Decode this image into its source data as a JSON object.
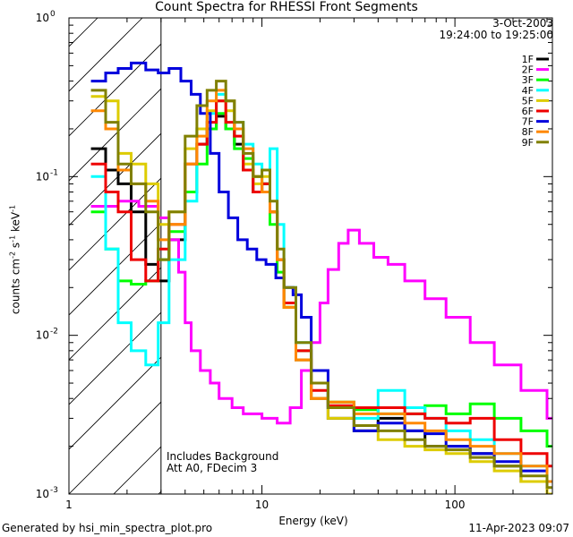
{
  "chart_data": {
    "type": "line",
    "title": "Count Spectra for RHESSI Front Segments",
    "xlabel": "Energy (keV)",
    "ylabel": "counts cm-2 s-1 keV-1",
    "xscale": "log",
    "yscale": "log",
    "xlim": [
      1,
      320
    ],
    "ylim": [
      0.001,
      1.0
    ],
    "x_ticks": [
      {
        "value": 1,
        "label": "1"
      },
      {
        "value": 10,
        "label": "10"
      },
      {
        "value": 100,
        "label": "100"
      }
    ],
    "y_ticks": [
      {
        "value": 1.0,
        "label": "10",
        "exp": "0"
      },
      {
        "value": 0.1,
        "label": "10",
        "exp": "-1"
      },
      {
        "value": 0.01,
        "label": "10",
        "exp": "-2"
      },
      {
        "value": 0.001,
        "label": "10",
        "exp": "-3"
      }
    ],
    "date": "3-Oct-2003",
    "time_range": "19:24:00 to 19:25:00",
    "annotations": [
      "Includes Background",
      "Att A0, FDecim 3"
    ],
    "hatched_region_max_keV": 3,
    "legend_position": "top-right",
    "series": [
      {
        "name": "1F",
        "color": "#000000",
        "points": [
          [
            1.3,
            0.15
          ],
          [
            1.55,
            0.11
          ],
          [
            1.8,
            0.09
          ],
          [
            2.1,
            0.06
          ],
          [
            2.5,
            0.028
          ],
          [
            2.9,
            0.022
          ],
          [
            3.3,
            0.04
          ],
          [
            4.0,
            0.08
          ],
          [
            4.6,
            0.16
          ],
          [
            5.2,
            0.2
          ],
          [
            5.8,
            0.24
          ],
          [
            6.5,
            0.2
          ],
          [
            7.2,
            0.16
          ],
          [
            8.0,
            0.11
          ],
          [
            9.0,
            0.08
          ],
          [
            10,
            0.09
          ],
          [
            11,
            0.06
          ],
          [
            12,
            0.03
          ],
          [
            13,
            0.015
          ],
          [
            15,
            0.007
          ],
          [
            18,
            0.004
          ],
          [
            22,
            0.003
          ],
          [
            30,
            0.0025
          ],
          [
            40,
            0.003
          ],
          [
            55,
            0.0025
          ],
          [
            70,
            0.002
          ],
          [
            90,
            0.002
          ],
          [
            120,
            0.0018
          ],
          [
            160,
            0.0015
          ],
          [
            220,
            0.0012
          ],
          [
            300,
            0.001
          ]
        ]
      },
      {
        "name": "2F",
        "color": "#ff00ff",
        "points": [
          [
            1.3,
            0.065
          ],
          [
            1.8,
            0.07
          ],
          [
            2.3,
            0.065
          ],
          [
            2.9,
            0.055
          ],
          [
            3.3,
            0.04
          ],
          [
            3.7,
            0.025
          ],
          [
            4.0,
            0.012
          ],
          [
            4.3,
            0.008
          ],
          [
            4.8,
            0.006
          ],
          [
            5.4,
            0.005
          ],
          [
            6.0,
            0.004
          ],
          [
            7.0,
            0.0035
          ],
          [
            8.0,
            0.0032
          ],
          [
            10,
            0.003
          ],
          [
            12,
            0.0028
          ],
          [
            14,
            0.0035
          ],
          [
            16,
            0.006
          ],
          [
            18,
            0.009
          ],
          [
            20,
            0.016
          ],
          [
            22,
            0.026
          ],
          [
            25,
            0.038
          ],
          [
            28,
            0.046
          ],
          [
            32,
            0.038
          ],
          [
            38,
            0.031
          ],
          [
            45,
            0.028
          ],
          [
            55,
            0.022
          ],
          [
            70,
            0.017
          ],
          [
            90,
            0.013
          ],
          [
            120,
            0.009
          ],
          [
            160,
            0.0065
          ],
          [
            220,
            0.0045
          ],
          [
            300,
            0.003
          ]
        ]
      },
      {
        "name": "3F",
        "color": "#00ff00",
        "points": [
          [
            1.3,
            0.06
          ],
          [
            1.55,
            0.035
          ],
          [
            1.8,
            0.022
          ],
          [
            2.1,
            0.021
          ],
          [
            2.5,
            0.022
          ],
          [
            2.9,
            0.03
          ],
          [
            3.3,
            0.045
          ],
          [
            4.0,
            0.08
          ],
          [
            4.6,
            0.12
          ],
          [
            5.2,
            0.2
          ],
          [
            5.8,
            0.25
          ],
          [
            6.5,
            0.2
          ],
          [
            7.2,
            0.15
          ],
          [
            8.0,
            0.13
          ],
          [
            9.0,
            0.1
          ],
          [
            10,
            0.09
          ],
          [
            11,
            0.05
          ],
          [
            12,
            0.025
          ],
          [
            13,
            0.015
          ],
          [
            15,
            0.008
          ],
          [
            18,
            0.005
          ],
          [
            22,
            0.0038
          ],
          [
            30,
            0.0034
          ],
          [
            40,
            0.0032
          ],
          [
            55,
            0.0032
          ],
          [
            70,
            0.0036
          ],
          [
            90,
            0.0032
          ],
          [
            120,
            0.0037
          ],
          [
            160,
            0.003
          ],
          [
            220,
            0.0025
          ],
          [
            300,
            0.002
          ]
        ]
      },
      {
        "name": "4F",
        "color": "#00ffff",
        "points": [
          [
            1.3,
            0.1
          ],
          [
            1.55,
            0.035
          ],
          [
            1.8,
            0.012
          ],
          [
            2.1,
            0.008
          ],
          [
            2.5,
            0.0065
          ],
          [
            2.9,
            0.012
          ],
          [
            3.3,
            0.03
          ],
          [
            4.0,
            0.07
          ],
          [
            4.6,
            0.2
          ],
          [
            5.2,
            0.25
          ],
          [
            5.8,
            0.33
          ],
          [
            6.5,
            0.3
          ],
          [
            7.2,
            0.22
          ],
          [
            8.0,
            0.16
          ],
          [
            9.0,
            0.12
          ],
          [
            10,
            0.11
          ],
          [
            11,
            0.15
          ],
          [
            12,
            0.05
          ],
          [
            13,
            0.02
          ],
          [
            15,
            0.009
          ],
          [
            18,
            0.005
          ],
          [
            22,
            0.0035
          ],
          [
            30,
            0.003
          ],
          [
            40,
            0.0045
          ],
          [
            55,
            0.0035
          ],
          [
            70,
            0.003
          ],
          [
            90,
            0.0025
          ],
          [
            120,
            0.0022
          ],
          [
            160,
            0.0018
          ],
          [
            220,
            0.0015
          ],
          [
            300,
            0.0012
          ]
        ]
      },
      {
        "name": "5F",
        "color": "#ddcc00",
        "points": [
          [
            1.3,
            0.32
          ],
          [
            1.55,
            0.3
          ],
          [
            1.8,
            0.14
          ],
          [
            2.1,
            0.12
          ],
          [
            2.5,
            0.09
          ],
          [
            2.9,
            0.05
          ],
          [
            3.3,
            0.06
          ],
          [
            4.0,
            0.15
          ],
          [
            4.6,
            0.2
          ],
          [
            5.2,
            0.26
          ],
          [
            5.8,
            0.3
          ],
          [
            6.5,
            0.26
          ],
          [
            7.2,
            0.2
          ],
          [
            8.0,
            0.12
          ],
          [
            9.0,
            0.09
          ],
          [
            10,
            0.1
          ],
          [
            11,
            0.06
          ],
          [
            12,
            0.03
          ],
          [
            13,
            0.015
          ],
          [
            15,
            0.007
          ],
          [
            18,
            0.004
          ],
          [
            22,
            0.003
          ],
          [
            30,
            0.0025
          ],
          [
            40,
            0.0022
          ],
          [
            55,
            0.002
          ],
          [
            70,
            0.0019
          ],
          [
            90,
            0.0018
          ],
          [
            120,
            0.0016
          ],
          [
            160,
            0.0014
          ],
          [
            220,
            0.0012
          ],
          [
            300,
            0.001
          ]
        ]
      },
      {
        "name": "6F",
        "color": "#ee0000",
        "points": [
          [
            1.3,
            0.12
          ],
          [
            1.55,
            0.08
          ],
          [
            1.8,
            0.06
          ],
          [
            2.1,
            0.03
          ],
          [
            2.5,
            0.022
          ],
          [
            2.9,
            0.035
          ],
          [
            3.3,
            0.05
          ],
          [
            4.0,
            0.12
          ],
          [
            4.6,
            0.16
          ],
          [
            5.2,
            0.22
          ],
          [
            5.8,
            0.3
          ],
          [
            6.5,
            0.22
          ],
          [
            7.2,
            0.18
          ],
          [
            8.0,
            0.11
          ],
          [
            9.0,
            0.08
          ],
          [
            10,
            0.09
          ],
          [
            11,
            0.06
          ],
          [
            12,
            0.03
          ],
          [
            13,
            0.016
          ],
          [
            15,
            0.008
          ],
          [
            18,
            0.0045
          ],
          [
            22,
            0.0036
          ],
          [
            30,
            0.0035
          ],
          [
            40,
            0.0035
          ],
          [
            55,
            0.0032
          ],
          [
            70,
            0.003
          ],
          [
            90,
            0.0028
          ],
          [
            120,
            0.003
          ],
          [
            160,
            0.0022
          ],
          [
            220,
            0.0018
          ],
          [
            300,
            0.0015
          ]
        ]
      },
      {
        "name": "7F",
        "color": "#0000dd",
        "points": [
          [
            1.3,
            0.4
          ],
          [
            1.55,
            0.45
          ],
          [
            1.8,
            0.48
          ],
          [
            2.1,
            0.52
          ],
          [
            2.5,
            0.47
          ],
          [
            2.9,
            0.45
          ],
          [
            3.3,
            0.48
          ],
          [
            3.8,
            0.4
          ],
          [
            4.3,
            0.33
          ],
          [
            4.8,
            0.25
          ],
          [
            5.4,
            0.14
          ],
          [
            6.0,
            0.08
          ],
          [
            6.7,
            0.055
          ],
          [
            7.5,
            0.04
          ],
          [
            8.4,
            0.035
          ],
          [
            9.4,
            0.03
          ],
          [
            10.5,
            0.028
          ],
          [
            11.8,
            0.023
          ],
          [
            13,
            0.02
          ],
          [
            14.5,
            0.018
          ],
          [
            16,
            0.013
          ],
          [
            18,
            0.006
          ],
          [
            22,
            0.0035
          ],
          [
            30,
            0.0025
          ],
          [
            40,
            0.0028
          ],
          [
            55,
            0.0025
          ],
          [
            70,
            0.0024
          ],
          [
            90,
            0.002
          ],
          [
            120,
            0.0018
          ],
          [
            160,
            0.0016
          ],
          [
            220,
            0.0014
          ],
          [
            300,
            0.0012
          ]
        ]
      },
      {
        "name": "8F",
        "color": "#ff8800",
        "points": [
          [
            1.3,
            0.26
          ],
          [
            1.55,
            0.2
          ],
          [
            1.8,
            0.11
          ],
          [
            2.1,
            0.09
          ],
          [
            2.5,
            0.07
          ],
          [
            2.9,
            0.04
          ],
          [
            3.3,
            0.05
          ],
          [
            4.0,
            0.12
          ],
          [
            4.6,
            0.18
          ],
          [
            5.2,
            0.3
          ],
          [
            5.8,
            0.35
          ],
          [
            6.5,
            0.3
          ],
          [
            7.2,
            0.2
          ],
          [
            8.0,
            0.15
          ],
          [
            9.0,
            0.1
          ],
          [
            10,
            0.08
          ],
          [
            11,
            0.06
          ],
          [
            12,
            0.03
          ],
          [
            13,
            0.015
          ],
          [
            15,
            0.007
          ],
          [
            18,
            0.004
          ],
          [
            22,
            0.0038
          ],
          [
            30,
            0.0032
          ],
          [
            40,
            0.0032
          ],
          [
            55,
            0.0028
          ],
          [
            70,
            0.0025
          ],
          [
            90,
            0.0022
          ],
          [
            120,
            0.002
          ],
          [
            160,
            0.0018
          ],
          [
            220,
            0.0015
          ],
          [
            300,
            0.0012
          ]
        ]
      },
      {
        "name": "9F",
        "color": "#808000",
        "points": [
          [
            1.3,
            0.35
          ],
          [
            1.55,
            0.22
          ],
          [
            1.8,
            0.12
          ],
          [
            2.1,
            0.09
          ],
          [
            2.5,
            0.06
          ],
          [
            2.9,
            0.03
          ],
          [
            3.3,
            0.06
          ],
          [
            4.0,
            0.18
          ],
          [
            4.6,
            0.28
          ],
          [
            5.2,
            0.35
          ],
          [
            5.8,
            0.4
          ],
          [
            6.5,
            0.3
          ],
          [
            7.2,
            0.22
          ],
          [
            8.0,
            0.14
          ],
          [
            9.0,
            0.1
          ],
          [
            10,
            0.11
          ],
          [
            11,
            0.07
          ],
          [
            12,
            0.035
          ],
          [
            13,
            0.02
          ],
          [
            15,
            0.009
          ],
          [
            18,
            0.005
          ],
          [
            22,
            0.0035
          ],
          [
            30,
            0.0027
          ],
          [
            40,
            0.0025
          ],
          [
            55,
            0.0022
          ],
          [
            70,
            0.002
          ],
          [
            90,
            0.0019
          ],
          [
            120,
            0.0017
          ],
          [
            160,
            0.0015
          ],
          [
            220,
            0.0013
          ],
          [
            300,
            0.0011
          ]
        ]
      }
    ]
  },
  "footer": {
    "left": "Generated by hsi_min_spectra_plot.pro",
    "right": "11-Apr-2023 09:07"
  }
}
